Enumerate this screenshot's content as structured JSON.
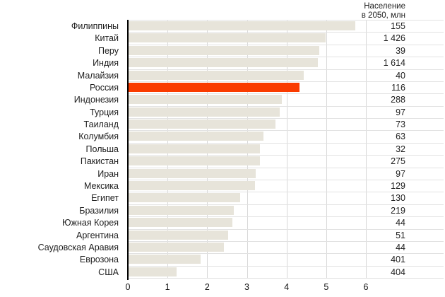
{
  "header": {
    "line1": "Население",
    "line2": "в 2050, млн"
  },
  "chart_data": {
    "type": "bar",
    "orientation": "horizontal",
    "title": "",
    "xlabel": "",
    "ylabel": "",
    "xlim": [
      0,
      6
    ],
    "x_ticks": [
      "0",
      "1",
      "2",
      "3",
      "4",
      "5",
      "6"
    ],
    "grid": true,
    "value_column_header": "Население в 2050, млн",
    "categories": [
      "Филиппины",
      "Китай",
      "Перу",
      "Индия",
      "Малайзия",
      "Россия",
      "Индонезия",
      "Турция",
      "Таиланд",
      "Колумбия",
      "Польша",
      "Пакистан",
      "Иран",
      "Мексика",
      "Египет",
      "Бразилия",
      "Южная Корея",
      "Аргентина",
      "Саудовская Аравия",
      "Еврозона",
      "США"
    ],
    "values": [
      5.71,
      4.96,
      4.81,
      4.77,
      4.41,
      4.31,
      3.87,
      3.81,
      3.71,
      3.4,
      3.32,
      3.31,
      3.2,
      3.18,
      2.81,
      2.65,
      2.61,
      2.51,
      2.4,
      1.82,
      1.21
    ],
    "population_2050_mln": [
      "155",
      "1 426",
      "39",
      "1 614",
      "40",
      "116",
      "288",
      "97",
      "73",
      "63",
      "32",
      "275",
      "97",
      "129",
      "130",
      "219",
      "44",
      "51",
      "44",
      "401",
      "404"
    ],
    "highlight_index": 5,
    "highlight_category": "Россия",
    "colors": {
      "bar": "#e7e4da",
      "highlight": "#fa3b00",
      "gridline": "#d8d8d8",
      "row_line": "#e2e2e2",
      "axis": "#000000",
      "text": "#1d1d1d"
    },
    "legend": null
  }
}
